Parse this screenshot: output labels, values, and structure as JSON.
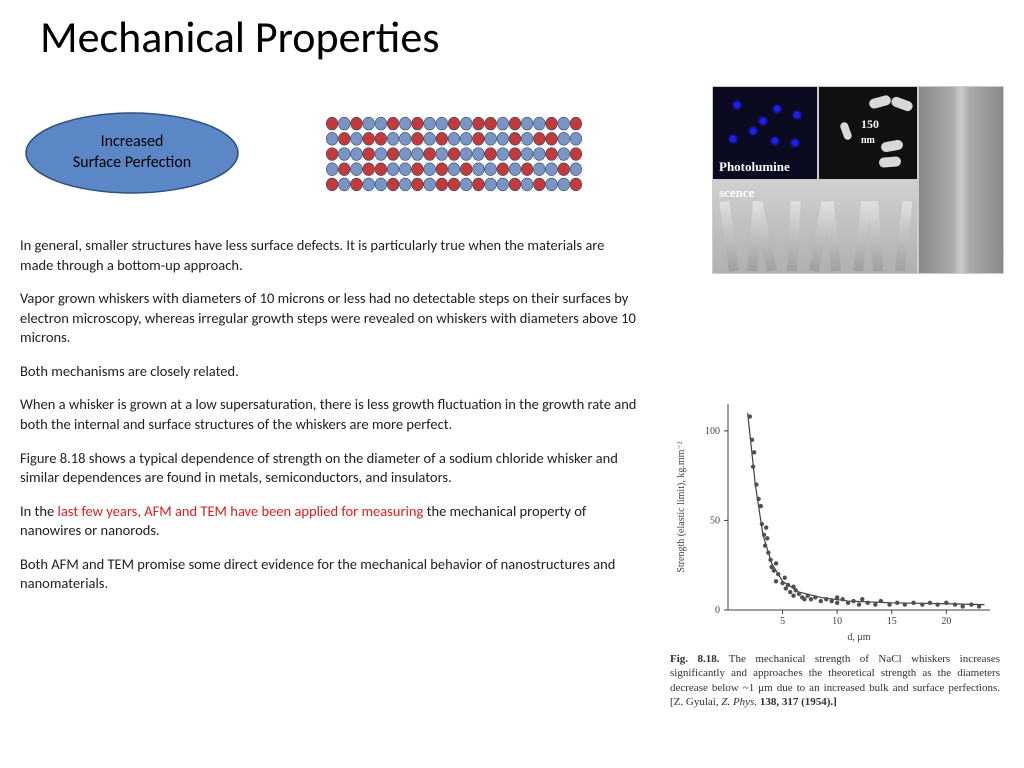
{
  "title": "Mechanical Properties",
  "ellipse": {
    "line1": "Increased",
    "line2": "Surface Perfection",
    "fill": "#5b87c7",
    "stroke": "#30507a"
  },
  "atom_array": {
    "rows": 5,
    "cols": 21,
    "colors": [
      "#c23a3a",
      "#7a95c4"
    ],
    "pattern": [
      "rbrbbrbrbbrbrrbrbbrbr",
      "brbrrbbrbrbbrbbrbrrbb",
      "rbbrbrbbrbrbbrbrbbrbr",
      "brbrrbbrbrbrbbrbrbbrb",
      "rbrbbrbrbrrbrbbrbrbbr"
    ],
    "border_color": "#304a6a"
  },
  "paragraphs": [
    {
      "plain": "In general, smaller structures have less surface defects. It is particularly true when the materials are made through a bottom-up approach."
    },
    {
      "plain": "Vapor grown whiskers with diameters of 10 microns or less had no detectable steps on their surfaces by electron microscopy, whereas irregular growth steps were revealed on whiskers with diameters above 10 microns."
    },
    {
      "plain": "Both mechanisms are closely related."
    },
    {
      "plain": "When a whisker is grown at a low supersaturation, there is less growth fluctuation in the growth rate and both the internal and surface structures of the whiskers are more perfect."
    },
    {
      "plain": "Figure 8.18 shows a typical dependence of strength on the diameter of a sodium chloride whisker and similar dependences are found in metals, semiconductors, and insulators."
    },
    {
      "pre": "In the ",
      "red": "last few years, AFM and TEM have been applied for measuring",
      "post": " the mechanical property of nanowires or nanorods."
    },
    {
      "plain": "Both AFM and TEM promise some direct evidence for the mechanical behavior of nanostructures and nanomaterials."
    }
  ],
  "thumbs": {
    "a_label": "Photolumine",
    "a_label2": "scence",
    "b_scale": "150",
    "b_scale_unit": "nm"
  },
  "chart": {
    "type": "scatter",
    "xlabel": "d, μm",
    "ylabel": "Strength (elastic limit), kg.mm⁻²",
    "label_fontsize": 10,
    "xlim": [
      0,
      24
    ],
    "ylim": [
      0,
      115
    ],
    "xticks": [
      5,
      10,
      15,
      20
    ],
    "yticks": [
      0,
      50,
      100
    ],
    "axis_color": "#404040",
    "tick_color": "#404040",
    "marker_color": "#505050",
    "marker_size": 2.2,
    "line_color": "#404040",
    "line_width": 1.2,
    "background": "#ffffff",
    "points": [
      [
        2.0,
        108
      ],
      [
        2.2,
        95
      ],
      [
        2.3,
        80
      ],
      [
        2.4,
        88
      ],
      [
        2.6,
        70
      ],
      [
        2.8,
        62
      ],
      [
        3.0,
        58
      ],
      [
        3.1,
        48
      ],
      [
        3.3,
        42
      ],
      [
        3.4,
        36
      ],
      [
        3.5,
        46
      ],
      [
        3.7,
        32
      ],
      [
        3.9,
        28
      ],
      [
        4.0,
        24
      ],
      [
        3.6,
        40
      ],
      [
        4.2,
        22
      ],
      [
        4.4,
        16
      ],
      [
        4.4,
        26
      ],
      [
        4.6,
        20
      ],
      [
        5.0,
        15
      ],
      [
        5.3,
        12
      ],
      [
        5.5,
        14
      ],
      [
        5.7,
        10
      ],
      [
        5.2,
        18
      ],
      [
        6.0,
        8
      ],
      [
        6.0,
        13
      ],
      [
        6.2,
        11
      ],
      [
        6.5,
        9
      ],
      [
        6.8,
        7
      ],
      [
        7.0,
        6
      ],
      [
        7.3,
        8
      ],
      [
        7.6,
        6
      ],
      [
        8.0,
        7
      ],
      [
        8.5,
        5
      ],
      [
        9.0,
        6
      ],
      [
        9.5,
        5
      ],
      [
        10.0,
        4
      ],
      [
        10.5,
        6
      ],
      [
        10.0,
        7
      ],
      [
        11.0,
        4
      ],
      [
        11.5,
        5
      ],
      [
        12.0,
        3
      ],
      [
        12.3,
        6
      ],
      [
        12.8,
        4
      ],
      [
        13.5,
        3
      ],
      [
        14.0,
        5
      ],
      [
        14.8,
        3
      ],
      [
        15.5,
        4
      ],
      [
        16.2,
        3
      ],
      [
        17.0,
        4
      ],
      [
        17.8,
        3
      ],
      [
        18.5,
        4
      ],
      [
        19.2,
        3
      ],
      [
        20.0,
        4
      ],
      [
        20.8,
        3
      ],
      [
        21.5,
        2
      ],
      [
        22.3,
        3
      ],
      [
        23.0,
        2
      ]
    ],
    "fit_curve": [
      [
        1.8,
        110
      ],
      [
        2.5,
        70
      ],
      [
        3.2,
        42
      ],
      [
        4.0,
        26
      ],
      [
        5.0,
        16
      ],
      [
        6.5,
        10
      ],
      [
        8.5,
        7
      ],
      [
        11.0,
        5
      ],
      [
        15.0,
        4
      ],
      [
        20.0,
        3.5
      ],
      [
        23.5,
        3
      ]
    ]
  },
  "caption": {
    "fignum": "Fig. 8.18.",
    "text": " The mechanical strength of NaCl whiskers increases significantly and approaches the theoretical strength as the diameters decrease below ~1 μm due to an increased bulk and surface perfections. [Z. Gyulai, ",
    "ital": "Z. Phys.",
    "tail": " 138, 317 (1954).]"
  }
}
